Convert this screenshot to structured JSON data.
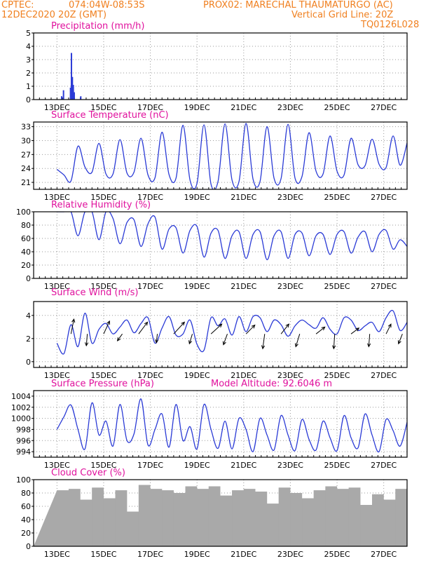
{
  "header": {
    "source": "CPTEC:",
    "coords": "074:04W-08:53S",
    "station": "PROX02: MARECHAL THAUMATURGO (AC)",
    "datetime": "12DEC2020 20Z (GMT)",
    "grid_note": "Vertical Grid Line: 20Z",
    "code": "TQ0126L028"
  },
  "colors": {
    "header": "#f08020",
    "title": "#e0119d",
    "series": "#2b3bd6",
    "arrow": "#000000",
    "cloud": "#a9a9a9",
    "grid": "#9a9a9a"
  },
  "chart_data": [
    {
      "type": "bar",
      "title": "Precipitation (mm/h)",
      "ylim": [
        0,
        5
      ],
      "yticks": [
        "0",
        "1",
        "2",
        "3",
        "4",
        "5"
      ],
      "x_labels": [
        "13DEC",
        "15DEC",
        "17DEC",
        "19DEC",
        "21DEC",
        "23DEC",
        "25DEC",
        "27DEC"
      ],
      "x": [
        0.2,
        0.28,
        0.58,
        0.62,
        0.66,
        0.7,
        0.74,
        1.02
      ],
      "values": [
        0.25,
        0.7,
        0.9,
        3.5,
        1.7,
        1.1,
        0.55,
        0.25
      ]
    },
    {
      "type": "line",
      "title": "Surface Temperature (nC)",
      "ylim": [
        19.5,
        34
      ],
      "yticks": [
        "21",
        "24",
        "27",
        "30",
        "33"
      ],
      "x_labels": [
        "13DEC",
        "15DEC",
        "17DEC",
        "19DEC",
        "21DEC",
        "23DEC",
        "25DEC",
        "27DEC"
      ],
      "x": [
        0,
        0.3,
        0.6,
        0.9,
        1.2,
        1.5,
        1.8,
        2.1,
        2.4,
        2.7,
        3.0,
        3.3,
        3.6,
        3.9,
        4.2,
        4.5,
        4.8,
        5.1,
        5.4,
        5.7,
        6.0,
        6.3,
        6.6,
        6.9,
        7.2,
        7.5,
        7.8,
        8.1,
        8.4,
        8.7,
        9.0,
        9.3,
        9.6,
        9.9,
        10.2,
        10.5,
        10.8,
        11.1,
        11.4,
        11.7,
        12.0,
        12.3,
        12.6,
        12.9,
        13.2,
        13.5,
        13.8,
        14.1,
        14.4,
        14.7,
        15.0
      ],
      "values": [
        23.8,
        22.6,
        21.3,
        28.8,
        24.3,
        23.2,
        29.4,
        22.8,
        22.8,
        30.2,
        23.0,
        23.2,
        30.5,
        22.6,
        22.0,
        31.8,
        22.7,
        21.9,
        33.3,
        21.5,
        20.8,
        33.4,
        20.6,
        21.2,
        33.6,
        21.5,
        21.2,
        33.7,
        21.7,
        21.2,
        33.0,
        21.9,
        21.8,
        33.5,
        21.9,
        22.3,
        31.7,
        23.4,
        22.8,
        31.0,
        23.4,
        22.6,
        30.5,
        24.8,
        24.6,
        30.3,
        24.9,
        24.2,
        31.0,
        24.7,
        29.5
      ]
    },
    {
      "type": "line",
      "title": "Relative Humidity (%)",
      "ylim": [
        0,
        100
      ],
      "yticks": [
        "0",
        "20",
        "40",
        "60",
        "80",
        "100"
      ],
      "x_labels": [
        "13DEC",
        "15DEC",
        "17DEC",
        "19DEC",
        "21DEC",
        "23DEC",
        "25DEC",
        "27DEC"
      ],
      "x": [
        0,
        0.3,
        0.6,
        0.9,
        1.2,
        1.5,
        1.8,
        2.1,
        2.4,
        2.7,
        3.0,
        3.3,
        3.6,
        3.9,
        4.2,
        4.5,
        4.8,
        5.1,
        5.4,
        5.7,
        6.0,
        6.3,
        6.6,
        6.9,
        7.2,
        7.5,
        7.8,
        8.1,
        8.4,
        8.7,
        9.0,
        9.3,
        9.6,
        9.9,
        10.2,
        10.5,
        10.8,
        11.1,
        11.4,
        11.7,
        12.0,
        12.3,
        12.6,
        12.9,
        13.2,
        13.5,
        13.8,
        14.1,
        14.4,
        14.7,
        15.0
      ],
      "values": [
        100,
        100,
        100,
        64,
        100,
        100,
        58,
        100,
        90,
        52,
        84,
        88,
        48,
        82,
        92,
        44,
        74,
        76,
        38,
        72,
        78,
        32,
        68,
        72,
        30,
        64,
        70,
        30,
        66,
        70,
        28,
        64,
        70,
        30,
        66,
        68,
        34,
        64,
        66,
        36,
        66,
        70,
        38,
        62,
        70,
        40,
        66,
        72,
        44,
        58,
        48
      ]
    },
    {
      "type": "line",
      "title": "Surface Wind (m/s)",
      "ylim": [
        -0.5,
        5.2
      ],
      "yticks": [
        "0",
        "2",
        "4"
      ],
      "x_labels": [
        "13DEC",
        "15DEC",
        "17DEC",
        "19DEC",
        "21DEC",
        "23DEC",
        "25DEC",
        "27DEC"
      ],
      "x": [
        0,
        0.3,
        0.6,
        0.9,
        1.2,
        1.5,
        1.8,
        2.1,
        2.4,
        2.7,
        3.0,
        3.3,
        3.6,
        3.9,
        4.2,
        4.5,
        4.8,
        5.1,
        5.4,
        5.7,
        6.0,
        6.3,
        6.6,
        6.9,
        7.2,
        7.5,
        7.8,
        8.1,
        8.4,
        8.7,
        9.0,
        9.3,
        9.6,
        9.9,
        10.2,
        10.5,
        10.8,
        11.1,
        11.4,
        11.7,
        12.0,
        12.3,
        12.6,
        12.9,
        13.2,
        13.5,
        13.8,
        14.1,
        14.4,
        14.7,
        15.0
      ],
      "values": [
        1.6,
        0.7,
        3.2,
        1.3,
        4.2,
        1.6,
        2.8,
        3.3,
        2.4,
        3.0,
        3.6,
        2.5,
        3.3,
        3.8,
        1.6,
        2.9,
        3.9,
        2.3,
        2.4,
        3.6,
        1.5,
        1.0,
        3.8,
        3.1,
        3.7,
        2.3,
        3.9,
        2.6,
        3.9,
        3.8,
        2.6,
        3.6,
        3.2,
        2.2,
        3.1,
        3.6,
        3.2,
        2.9,
        3.8,
        2.8,
        2.4,
        3.8,
        3.6,
        2.7,
        3.1,
        3.4,
        2.6,
        3.8,
        4.4,
        2.7,
        3.4
      ],
      "arrows_x": [
        0.6,
        1.3,
        2.0,
        2.8,
        3.5,
        4.3,
        5.0,
        5.8,
        6.6,
        7.3,
        8.1,
        8.9,
        9.6,
        10.4,
        11.1,
        11.9,
        12.6,
        13.4,
        14.1,
        14.8
      ],
      "arrows_u": [
        0.3,
        -0.1,
        0.6,
        -0.5,
        0.9,
        -0.1,
        1.1,
        -0.3,
        1.1,
        -0.4,
        0.9,
        -0.2,
        0.8,
        -0.4,
        0.9,
        -0.1,
        0.8,
        -0.1,
        0.5,
        -0.4
      ],
      "arrows_v": [
        1.5,
        -1.2,
        1.3,
        -0.7,
        1.2,
        -0.9,
        1.2,
        -1.0,
        1.0,
        -1.1,
        0.9,
        -1.5,
        1.0,
        -1.3,
        0.7,
        -1.5,
        0.6,
        -1.3,
        1.0,
        -1.0
      ]
    },
    {
      "type": "line",
      "title": "Surface Pressure (hPa)",
      "annotation": "Model Altitude: 92.6046 m",
      "ylim": [
        993,
        1005
      ],
      "yticks": [
        "994",
        "996",
        "998",
        "1000",
        "1002",
        "1004"
      ],
      "x_labels": [
        "13DEC",
        "15DEC",
        "17DEC",
        "19DEC",
        "21DEC",
        "23DEC",
        "25DEC",
        "27DEC"
      ],
      "x": [
        0,
        0.3,
        0.6,
        0.9,
        1.2,
        1.5,
        1.8,
        2.1,
        2.4,
        2.7,
        3.0,
        3.3,
        3.6,
        3.9,
        4.2,
        4.5,
        4.8,
        5.1,
        5.4,
        5.7,
        6.0,
        6.3,
        6.6,
        6.9,
        7.2,
        7.5,
        7.8,
        8.1,
        8.4,
        8.7,
        9.0,
        9.3,
        9.6,
        9.9,
        10.2,
        10.5,
        10.8,
        11.1,
        11.4,
        11.7,
        12.0,
        12.3,
        12.6,
        12.9,
        13.2,
        13.5,
        13.8,
        14.1,
        14.4,
        14.7,
        15.0
      ],
      "values": [
        998.0,
        1000.3,
        1002.4,
        998.0,
        994.5,
        1002.8,
        997.0,
        999.5,
        995.0,
        1002.5,
        996.0,
        997.2,
        1003.5,
        995.2,
        998.0,
        1000.8,
        994.8,
        1002.5,
        996.0,
        998.5,
        994.5,
        1002.5,
        998.0,
        994.6,
        999.5,
        994.5,
        1000.0,
        998.0,
        994.0,
        1000.0,
        997.0,
        994.3,
        1000.5,
        997.0,
        994.2,
        999.8,
        996.2,
        994.3,
        999.5,
        996.5,
        994.2,
        1000.5,
        996.5,
        994.7,
        1000.8,
        997.0,
        994.0,
        999.8,
        997.8,
        995.0,
        999.3
      ]
    },
    {
      "type": "bar",
      "title": "Cloud Cover (%)",
      "ylim": [
        0,
        100
      ],
      "yticks": [
        "0",
        "20",
        "40",
        "60",
        "80",
        "100"
      ],
      "x_labels": [
        "13DEC",
        "15DEC",
        "17DEC",
        "19DEC",
        "21DEC",
        "23DEC",
        "25DEC",
        "27DEC"
      ],
      "x": [
        0,
        0.5,
        1.0,
        1.5,
        2.0,
        2.5,
        3.0,
        3.5,
        4.0,
        4.5,
        5.0,
        5.5,
        6.0,
        6.5,
        7.0,
        7.5,
        8.0,
        8.5,
        9.0,
        9.5,
        10.0,
        10.5,
        11.0,
        11.5,
        12.0,
        12.5,
        13.0,
        13.5,
        14.0,
        14.5,
        15.0
      ],
      "values": [
        84,
        86,
        70,
        88,
        72,
        84,
        52,
        92,
        86,
        84,
        80,
        90,
        86,
        90,
        76,
        84,
        86,
        82,
        64,
        88,
        80,
        72,
        84,
        90,
        86,
        88,
        62,
        78,
        70,
        86,
        82
      ]
    }
  ]
}
